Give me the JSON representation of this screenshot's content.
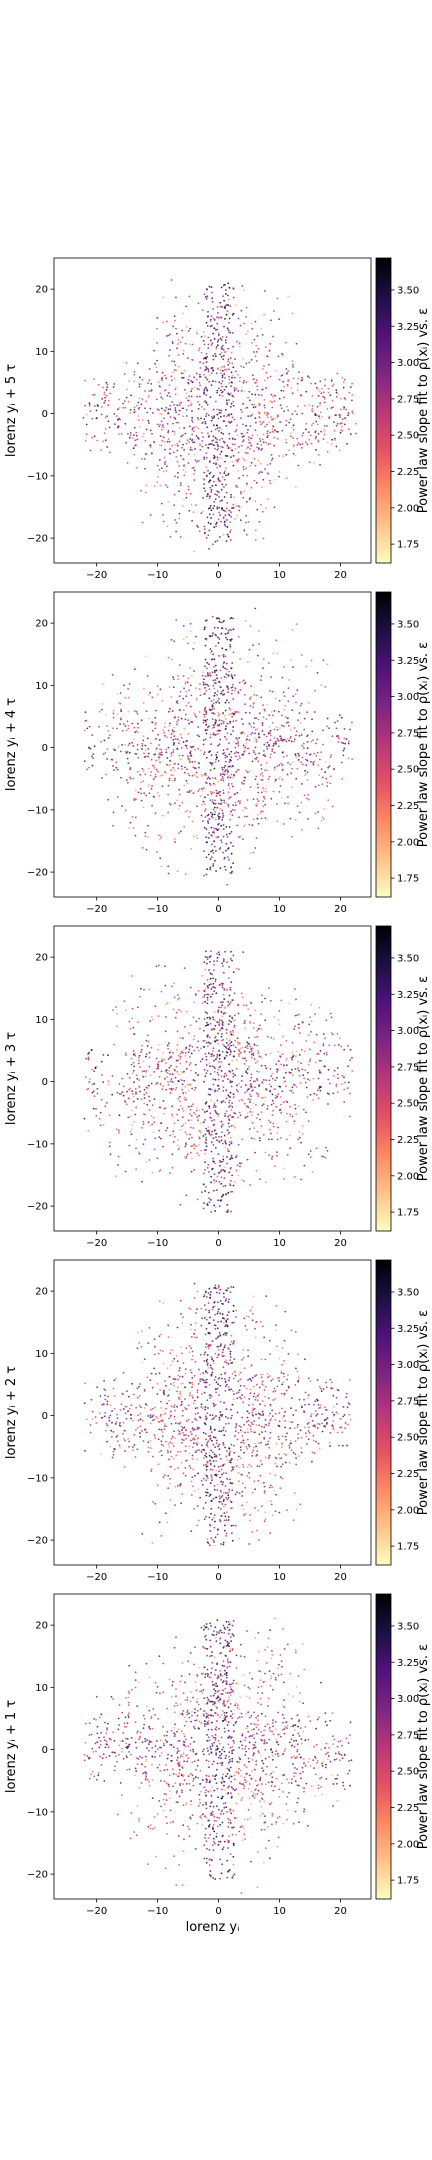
{
  "colormap": {
    "name": "magma",
    "stops": [
      "#fcfdbf",
      "#fec287",
      "#fc8961",
      "#e55064",
      "#b73779",
      "#7e2482",
      "#4f127b",
      "#1c1044",
      "#000004"
    ]
  },
  "chart_data": [
    {
      "type": "scatter",
      "ylabel": "lorenz yᵢ + 5 τ",
      "xlabel": "",
      "xlim": [
        -27,
        25
      ],
      "ylim": [
        -24,
        25
      ],
      "x_ticks": [
        "−20",
        "−10",
        "0",
        "10",
        "20"
      ],
      "y_ticks": [
        "−20",
        "−10",
        "0",
        "10",
        "20"
      ],
      "colorbar": {
        "label": "Power law slope fit to ρ(xᵢ) vs. ε",
        "range": [
          1.62,
          3.72
        ],
        "ticks": [
          "1.75",
          "2.00",
          "2.25",
          "2.50",
          "2.75",
          "3.00",
          "3.25",
          "3.50"
        ]
      },
      "grid": false
    },
    {
      "type": "scatter",
      "ylabel": "lorenz yᵢ + 4 τ",
      "xlabel": "",
      "xlim": [
        -27,
        25
      ],
      "ylim": [
        -24,
        25
      ],
      "x_ticks": [
        "−20",
        "−10",
        "0",
        "10",
        "20"
      ],
      "y_ticks": [
        "−20",
        "−10",
        "0",
        "10",
        "20"
      ],
      "colorbar": {
        "label": "Power law slope fit to ρ(xᵢ) vs. ε",
        "range": [
          1.62,
          3.72
        ],
        "ticks": [
          "1.75",
          "2.00",
          "2.25",
          "2.50",
          "2.75",
          "3.00",
          "3.25",
          "3.50"
        ]
      },
      "grid": false
    },
    {
      "type": "scatter",
      "ylabel": "lorenz yᵢ + 3 τ",
      "xlabel": "",
      "xlim": [
        -27,
        25
      ],
      "ylim": [
        -24,
        25
      ],
      "x_ticks": [
        "−20",
        "−10",
        "0",
        "10",
        "20"
      ],
      "y_ticks": [
        "−20",
        "−10",
        "0",
        "10",
        "20"
      ],
      "colorbar": {
        "label": "Power law slope fit to ρ(xᵢ) vs. ε",
        "range": [
          1.62,
          3.72
        ],
        "ticks": [
          "1.75",
          "2.00",
          "2.25",
          "2.50",
          "2.75",
          "3.00",
          "3.25",
          "3.50"
        ]
      },
      "grid": false
    },
    {
      "type": "scatter",
      "ylabel": "lorenz yᵢ + 2 τ",
      "xlabel": "",
      "xlim": [
        -27,
        25
      ],
      "ylim": [
        -24,
        25
      ],
      "x_ticks": [
        "−20",
        "−10",
        "0",
        "10",
        "20"
      ],
      "y_ticks": [
        "−20",
        "−10",
        "0",
        "10",
        "20"
      ],
      "colorbar": {
        "label": "Power law slope fit to ρ(xᵢ) vs. ε",
        "range": [
          1.62,
          3.72
        ],
        "ticks": [
          "1.75",
          "2.00",
          "2.25",
          "2.50",
          "2.75",
          "3.00",
          "3.25",
          "3.50"
        ]
      },
      "grid": false
    },
    {
      "type": "scatter",
      "ylabel": "lorenz yᵢ + 1 τ",
      "xlabel": "lorenz yᵢ",
      "xlim": [
        -27,
        25
      ],
      "ylim": [
        -24,
        25
      ],
      "x_ticks": [
        "−20",
        "−10",
        "0",
        "10",
        "20"
      ],
      "y_ticks": [
        "−20",
        "−10",
        "0",
        "10",
        "20"
      ],
      "colorbar": {
        "label": "Power law slope fit to ρ(xᵢ) vs. ε",
        "range": [
          1.62,
          3.72
        ],
        "ticks": [
          "1.75",
          "2.00",
          "2.25",
          "2.50",
          "2.75",
          "3.00",
          "3.25",
          "3.50"
        ]
      },
      "grid": false
    }
  ]
}
